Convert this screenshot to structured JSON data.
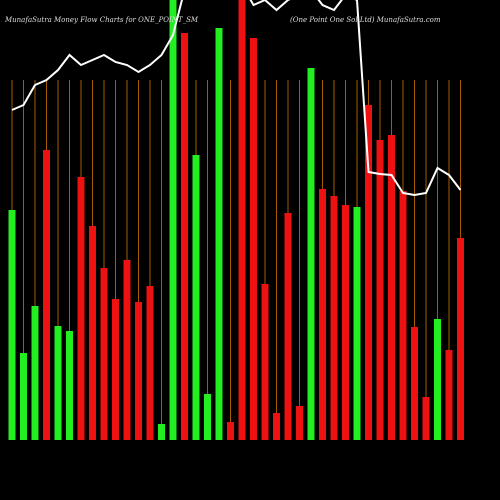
{
  "chart_data": {
    "type": "bar",
    "title": "MunafaSutra  Money Flow  Charts for ONE_POINT_SM",
    "subtitle": "(One  Point One  Sol Ltd) MunafaSutra.com",
    "categories": [
      null,
      null,
      null,
      null,
      null,
      null,
      null,
      null,
      null,
      null,
      null,
      null,
      null,
      null,
      null,
      null,
      null,
      null,
      null,
      null,
      null,
      null,
      null,
      null,
      null,
      null,
      null,
      null,
      null,
      null,
      null,
      null,
      null,
      null,
      null,
      null,
      null,
      null,
      null,
      null
    ],
    "values": [
      230,
      87,
      134,
      290,
      114,
      109,
      263,
      214,
      172,
      141,
      180,
      138,
      154,
      16,
      440,
      407,
      285,
      46,
      412,
      18,
      440,
      402,
      156,
      27,
      227,
      34,
      372,
      251,
      244,
      235,
      233,
      335,
      300,
      305,
      249,
      113,
      43,
      121,
      90,
      202
    ],
    "colors": [
      "#22ee22",
      "#22ee22",
      "#22ee22",
      "#ee1111",
      "#22ee22",
      "#22ee22",
      "#ee1111",
      "#ee1111",
      "#ee1111",
      "#ee1111",
      "#ee1111",
      "#ee1111",
      "#ee1111",
      "#22ee22",
      "#22ee22",
      "#ee1111",
      "#22ee22",
      "#22ee22",
      "#22ee22",
      "#ee1111",
      "#ee1111",
      "#ee1111",
      "#ee1111",
      "#ee1111",
      "#ee1111",
      "#ee1111",
      "#22ee22",
      "#ee1111",
      "#ee1111",
      "#ee1111",
      "#22ee22",
      "#ee1111",
      "#ee1111",
      "#ee1111",
      "#ee1111",
      "#ee1111",
      "#ee1111",
      "#22ee22",
      "#ee1111",
      "#ee1111"
    ],
    "line_values": [
      330,
      335,
      355,
      360,
      370,
      385,
      375,
      380,
      385,
      378,
      375,
      368,
      375,
      385,
      405,
      450,
      460,
      465,
      465,
      460,
      455,
      435,
      440,
      430,
      440,
      445,
      450,
      435,
      430,
      445,
      440,
      268,
      266,
      265,
      247,
      245,
      247,
      272,
      265,
      250
    ],
    "line_color": "#ffffff",
    "grid_color": "#a55a00",
    "ylim": [
      0,
      440
    ]
  }
}
